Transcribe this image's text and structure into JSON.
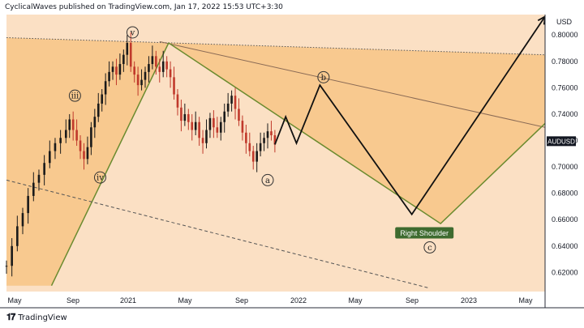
{
  "header": {
    "attribution": "CyclicalWaves published on TradingView.com, Jan 17, 2022 15:53 UTC+3:30"
  },
  "footer": {
    "logo_text": "TradingView"
  },
  "chart_data": {
    "type": "candlestick",
    "symbol": "AUDUSD",
    "currency_label": "USD",
    "last_price_label": "AUDUSD",
    "y_ticks": [
      "0.80000",
      "0.78000",
      "0.76000",
      "0.74000",
      "0.72000",
      "0.70000",
      "0.68000",
      "0.66000",
      "0.64000",
      "0.62000"
    ],
    "y_tick_values": [
      0.8,
      0.78,
      0.76,
      0.74,
      0.72,
      0.7,
      0.68,
      0.66,
      0.64,
      0.62
    ],
    "x_ticks": [
      "May",
      "Sep",
      "2021",
      "May",
      "Sep",
      "2022",
      "May",
      "Sep",
      "2023",
      "May"
    ],
    "price_path": [
      [
        0,
        0.625
      ],
      [
        3,
        0.64
      ],
      [
        6,
        0.655
      ],
      [
        9,
        0.665
      ],
      [
        12,
        0.678
      ],
      [
        15,
        0.688
      ],
      [
        18,
        0.694
      ],
      [
        21,
        0.703
      ],
      [
        24,
        0.712
      ],
      [
        27,
        0.718
      ],
      [
        30,
        0.722
      ],
      [
        33,
        0.728
      ],
      [
        35,
        0.736
      ],
      [
        37,
        0.728
      ],
      [
        39,
        0.72
      ],
      [
        41,
        0.712
      ],
      [
        43,
        0.706
      ],
      [
        45,
        0.715
      ],
      [
        47,
        0.73
      ],
      [
        49,
        0.738
      ],
      [
        51,
        0.748
      ],
      [
        53,
        0.755
      ],
      [
        55,
        0.765
      ],
      [
        57,
        0.772
      ],
      [
        59,
        0.776
      ],
      [
        61,
        0.77
      ],
      [
        63,
        0.778
      ],
      [
        65,
        0.785
      ],
      [
        67,
        0.794
      ],
      [
        69,
        0.776
      ],
      [
        71,
        0.77
      ],
      [
        73,
        0.762
      ],
      [
        75,
        0.766
      ],
      [
        77,
        0.772
      ],
      [
        79,
        0.778
      ],
      [
        81,
        0.784
      ],
      [
        83,
        0.776
      ],
      [
        85,
        0.772
      ],
      [
        87,
        0.78
      ],
      [
        89,
        0.774
      ],
      [
        91,
        0.768
      ],
      [
        93,
        0.755
      ],
      [
        95,
        0.745
      ],
      [
        97,
        0.735
      ],
      [
        99,
        0.74
      ],
      [
        101,
        0.734
      ],
      [
        103,
        0.728
      ],
      [
        105,
        0.734
      ],
      [
        107,
        0.722
      ],
      [
        109,
        0.718
      ],
      [
        111,
        0.728
      ],
      [
        113,
        0.737
      ],
      [
        115,
        0.73
      ],
      [
        117,
        0.726
      ],
      [
        119,
        0.734
      ],
      [
        121,
        0.742
      ],
      [
        123,
        0.748
      ],
      [
        125,
        0.754
      ],
      [
        127,
        0.744
      ],
      [
        129,
        0.735
      ],
      [
        131,
        0.726
      ],
      [
        133,
        0.718
      ],
      [
        135,
        0.712
      ],
      [
        137,
        0.704
      ],
      [
        139,
        0.712
      ],
      [
        141,
        0.718
      ],
      [
        143,
        0.722
      ],
      [
        145,
        0.727
      ],
      [
        147,
        0.724
      ],
      [
        149,
        0.717
      ]
    ],
    "projection_path": [
      [
        149,
        0.717
      ],
      [
        155,
        0.738
      ],
      [
        161,
        0.718
      ],
      [
        174,
        0.762
      ],
      [
        225,
        0.664
      ],
      [
        299,
        0.814
      ]
    ],
    "wave_labels": [
      {
        "text": "iii",
        "x": 38,
        "y": 0.754
      },
      {
        "text": "iv",
        "x": 52,
        "y": 0.692
      },
      {
        "text": "v",
        "x": 70,
        "y": 0.802
      },
      {
        "text": "a",
        "x": 145,
        "y": 0.69
      },
      {
        "text": "b",
        "x": 176,
        "y": 0.768
      },
      {
        "text": "c",
        "x": 235,
        "y": 0.639
      }
    ],
    "annotation": "Right Shoulder",
    "trend_lines": {
      "resistance_dotted": [
        [
          0,
          0.798
        ],
        [
          299,
          0.785
        ]
      ],
      "falling_upper": [
        [
          85,
          0.795
        ],
        [
          299,
          0.73
        ]
      ],
      "support_right_channel": [
        [
          90,
          0.794
        ],
        [
          241,
          0.657
        ],
        [
          299,
          0.733
        ]
      ],
      "support_left": [
        [
          25,
          0.61
        ],
        [
          90,
          0.794
        ]
      ],
      "dashed_lower": [
        [
          0,
          0.69
        ],
        [
          235,
          0.608
        ]
      ]
    }
  }
}
